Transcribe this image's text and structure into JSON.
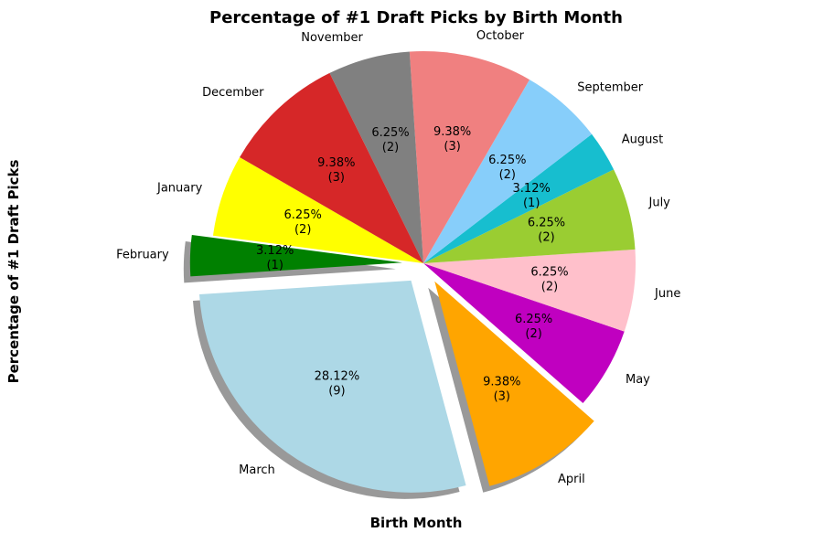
{
  "chart_data": {
    "type": "pie",
    "title": "Percentage of #1 Draft Picks by Birth Month",
    "xlabel": "Birth Month",
    "ylabel": "Percentage of #1 Draft Picks",
    "categories": [
      "January",
      "February",
      "March",
      "April",
      "May",
      "June",
      "July",
      "August",
      "September",
      "October",
      "November",
      "December"
    ],
    "values": [
      2,
      1,
      9,
      3,
      2,
      2,
      2,
      1,
      2,
      3,
      2,
      3
    ],
    "percent_labels": [
      "6.25%",
      "3.12%",
      "28.12%",
      "9.38%",
      "6.25%",
      "6.25%",
      "6.25%",
      "3.12%",
      "6.25%",
      "9.38%",
      "6.25%",
      "9.38%"
    ],
    "count_labels": [
      "(2)",
      "(1)",
      "(9)",
      "(3)",
      "(2)",
      "(2)",
      "(2)",
      "(1)",
      "(2)",
      "(3)",
      "(2)",
      "(3)"
    ],
    "colors": [
      "#ffff00",
      "#008000",
      "#add8e6",
      "#ffa500",
      "#c000c0",
      "#ffc0cb",
      "#9acd32",
      "#17becf",
      "#87cefa",
      "#f08080",
      "#808080",
      "#d62728"
    ],
    "exploded": [
      "February",
      "March",
      "April"
    ],
    "shadow": true,
    "start_angle": 150,
    "direction": "counterclockwise",
    "legend": "none"
  }
}
